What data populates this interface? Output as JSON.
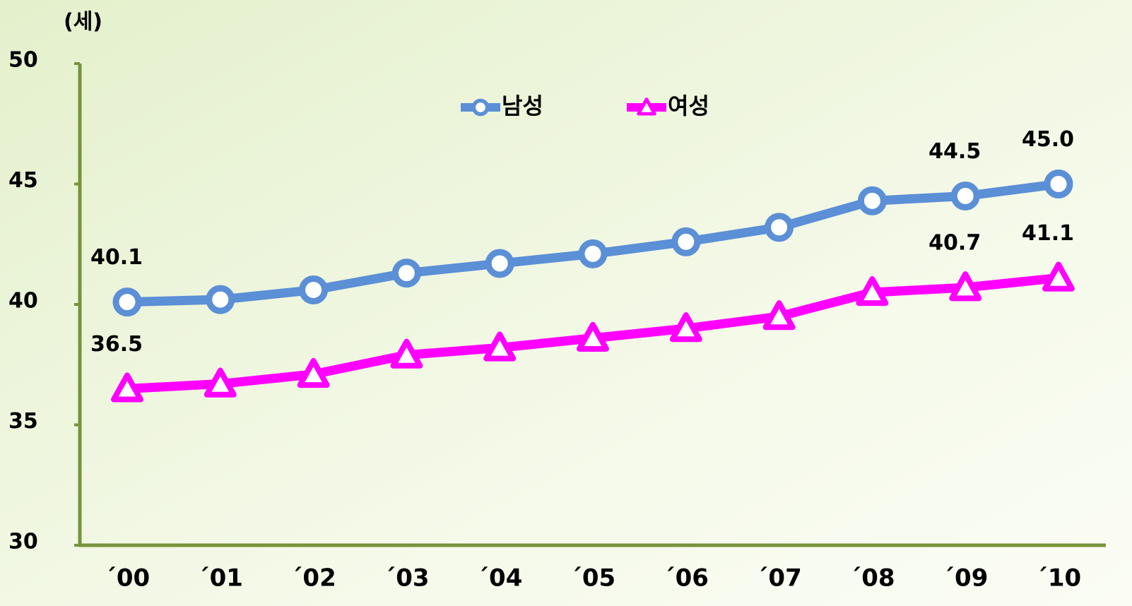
{
  "chart_data": {
    "type": "line",
    "y_axis_label": "(세)",
    "categories": [
      "´00",
      "´01",
      "´02",
      "´03",
      "´04",
      "´05",
      "´06",
      "´07",
      "´08",
      "´09",
      "´10"
    ],
    "series": [
      {
        "name": "남성",
        "color": "#5b8fd6",
        "marker": "circle",
        "values": [
          40.1,
          40.2,
          40.6,
          41.3,
          41.7,
          42.1,
          42.6,
          43.2,
          44.3,
          44.5,
          45.0
        ],
        "value_labels": [
          "40.1",
          null,
          null,
          null,
          null,
          null,
          null,
          null,
          null,
          "44.5",
          "45.0"
        ]
      },
      {
        "name": "여성",
        "color": "#ff00ff",
        "marker": "triangle",
        "values": [
          36.5,
          36.7,
          37.1,
          37.9,
          38.2,
          38.6,
          39.0,
          39.5,
          40.5,
          40.7,
          41.1
        ],
        "value_labels": [
          "36.5",
          null,
          null,
          null,
          null,
          null,
          null,
          null,
          null,
          "40.7",
          "41.1"
        ]
      }
    ],
    "ylim": [
      30,
      50
    ],
    "yticks": [
      30,
      35,
      40,
      45,
      50
    ],
    "axis_color": "#77933c",
    "legend": "top"
  }
}
